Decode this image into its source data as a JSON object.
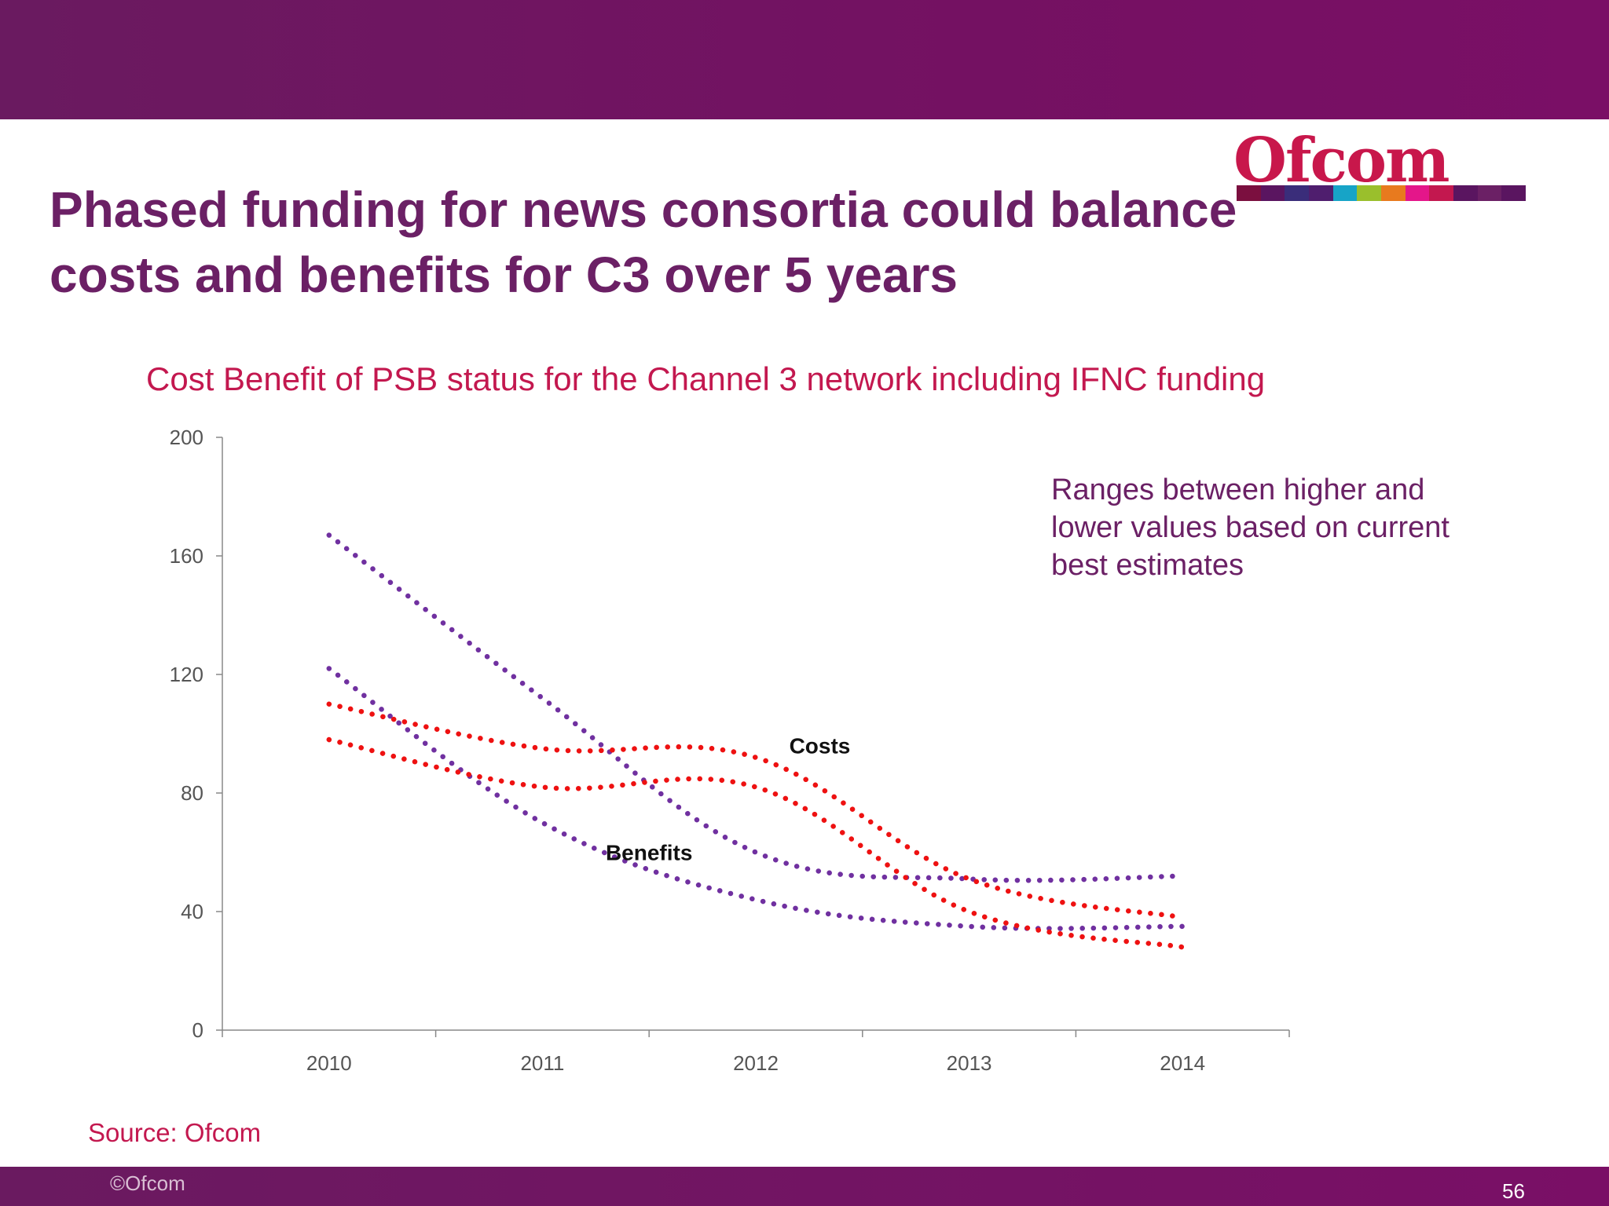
{
  "header": {
    "title": "Phased funding for news consortia could balance costs and benefits for C3 over 5 years",
    "logo_text": "Ofcom",
    "logo_bar_colors": [
      "#7b0f3f",
      "#5a1560",
      "#3a2d7a",
      "#4f1e6e",
      "#17a4c7",
      "#9abf2c",
      "#e87a1e",
      "#e4168a",
      "#c3184f",
      "#5a1560",
      "#6b2065",
      "#5a1560"
    ]
  },
  "chart_data": {
    "type": "line",
    "title": "Cost Benefit of PSB status for the Channel 3 network including IFNC funding",
    "categories": [
      "2010",
      "2011",
      "2012",
      "2013",
      "2014"
    ],
    "y_ticks": [
      "0",
      "40",
      "80",
      "120",
      "160",
      "200"
    ],
    "ylim": [
      0,
      200
    ],
    "xlabel": "",
    "ylabel": "",
    "series": [
      {
        "name": "Benefits (higher)",
        "group": "Benefits",
        "color": "#7030a0",
        "values": [
          167,
          112,
          60,
          51,
          52
        ]
      },
      {
        "name": "Benefits (lower)",
        "group": "Benefits",
        "color": "#7030a0",
        "values": [
          122,
          70,
          44,
          35,
          35
        ]
      },
      {
        "name": "Costs (higher)",
        "group": "Costs",
        "color": "#ee1111",
        "values": [
          110,
          95,
          92,
          51,
          38
        ]
      },
      {
        "name": "Costs (lower)",
        "group": "Costs",
        "color": "#ee1111",
        "values": [
          98,
          82,
          82,
          40,
          28
        ]
      }
    ],
    "labels": [
      {
        "text": "Costs",
        "x": "2012",
        "y": 96,
        "dx": 0.3
      },
      {
        "text": "Benefits",
        "x": "2011",
        "y": 60,
        "dx": 0.5
      }
    ],
    "annotation": "Ranges between higher and lower values based on current best estimates"
  },
  "footer": {
    "source": "Source: Ofcom",
    "copyright": "©Ofcom",
    "page_number": "56"
  }
}
